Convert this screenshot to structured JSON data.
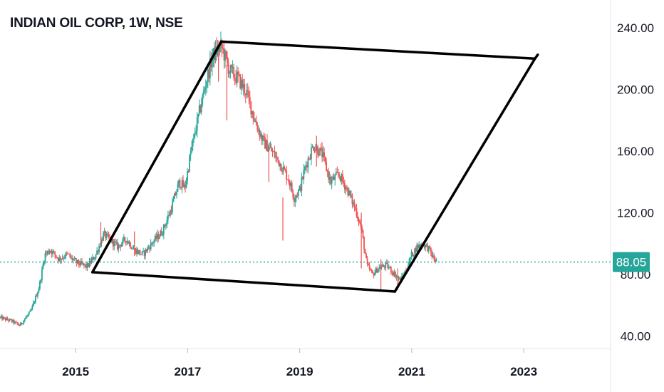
{
  "chart_data": {
    "type": "candlestick",
    "title": "INDIAN OIL CORP, 1W, NSE",
    "symbol": "INDIAN OIL CORP",
    "interval": "1W",
    "exchange": "NSE",
    "y_ticks": [
      "240.00",
      "200.00",
      "160.00",
      "120.00",
      "80.00",
      "40.00"
    ],
    "y_tick_values": [
      240,
      200,
      160,
      120,
      80,
      40
    ],
    "x_ticks": [
      "2015",
      "2017",
      "2019",
      "2021",
      "2023"
    ],
    "x_tick_values": [
      2015,
      2017,
      2019,
      2021,
      2023
    ],
    "ylim": [
      32,
      258
    ],
    "xlim": [
      2013.65,
      2024.55
    ],
    "last_price": 88.05,
    "last_price_label": "88.05",
    "colors": {
      "up": "#26a69a",
      "down": "#ef5350",
      "pattern": "#000000",
      "price_label_bg": "#26a69a",
      "price_line": "#26a69a",
      "text": "#131722",
      "axis": "#e0e3eb"
    },
    "price_path": [
      [
        2013.65,
        52
      ],
      [
        2013.85,
        50
      ],
      [
        2014.0,
        47
      ],
      [
        2014.2,
        56
      ],
      [
        2014.35,
        72
      ],
      [
        2014.45,
        93
      ],
      [
        2014.55,
        96
      ],
      [
        2014.7,
        90
      ],
      [
        2014.85,
        93
      ],
      [
        2015.0,
        88
      ],
      [
        2015.2,
        85
      ],
      [
        2015.35,
        92
      ],
      [
        2015.5,
        106
      ],
      [
        2015.6,
        103
      ],
      [
        2015.75,
        98
      ],
      [
        2015.9,
        103
      ],
      [
        2016.05,
        96
      ],
      [
        2016.2,
        93
      ],
      [
        2016.4,
        102
      ],
      [
        2016.55,
        108
      ],
      [
        2016.7,
        122
      ],
      [
        2016.85,
        140
      ],
      [
        2016.95,
        136
      ],
      [
        2017.05,
        158
      ],
      [
        2017.2,
        184
      ],
      [
        2017.35,
        208
      ],
      [
        2017.45,
        222
      ],
      [
        2017.6,
        228
      ],
      [
        2017.75,
        212
      ],
      [
        2017.9,
        207
      ],
      [
        2018.05,
        198
      ],
      [
        2018.2,
        180
      ],
      [
        2018.35,
        166
      ],
      [
        2018.5,
        160
      ],
      [
        2018.65,
        152
      ],
      [
        2018.8,
        142
      ],
      [
        2018.9,
        130
      ],
      [
        2019.0,
        135
      ],
      [
        2019.1,
        150
      ],
      [
        2019.25,
        164
      ],
      [
        2019.4,
        158
      ],
      [
        2019.55,
        140
      ],
      [
        2019.7,
        145
      ],
      [
        2019.85,
        135
      ],
      [
        2020.0,
        122
      ],
      [
        2020.1,
        110
      ],
      [
        2020.2,
        86
      ],
      [
        2020.3,
        80
      ],
      [
        2020.4,
        84
      ],
      [
        2020.55,
        86
      ],
      [
        2020.7,
        80
      ],
      [
        2020.8,
        76
      ],
      [
        2020.9,
        83
      ],
      [
        2021.0,
        93
      ],
      [
        2021.1,
        98
      ],
      [
        2021.2,
        100
      ],
      [
        2021.3,
        97
      ],
      [
        2021.38,
        91
      ],
      [
        2021.45,
        88.05
      ]
    ],
    "spikes": [
      [
        2015.45,
        114,
        100
      ],
      [
        2016.05,
        108,
        92
      ],
      [
        2017.55,
        226,
        205
      ],
      [
        2017.7,
        216,
        180
      ],
      [
        2018.45,
        165,
        140
      ],
      [
        2018.7,
        130,
        102
      ],
      [
        2019.3,
        170,
        150
      ],
      [
        2020.1,
        120,
        84
      ],
      [
        2020.45,
        90,
        70
      ],
      [
        2020.75,
        84,
        70
      ]
    ],
    "pattern_points": [
      [
        2015.3,
        81.5
      ],
      [
        2017.6,
        231
      ],
      [
        2023.2,
        220
      ],
      [
        2020.7,
        69
      ]
    ],
    "pattern_extension": [
      2023.25,
      222.5
    ]
  }
}
